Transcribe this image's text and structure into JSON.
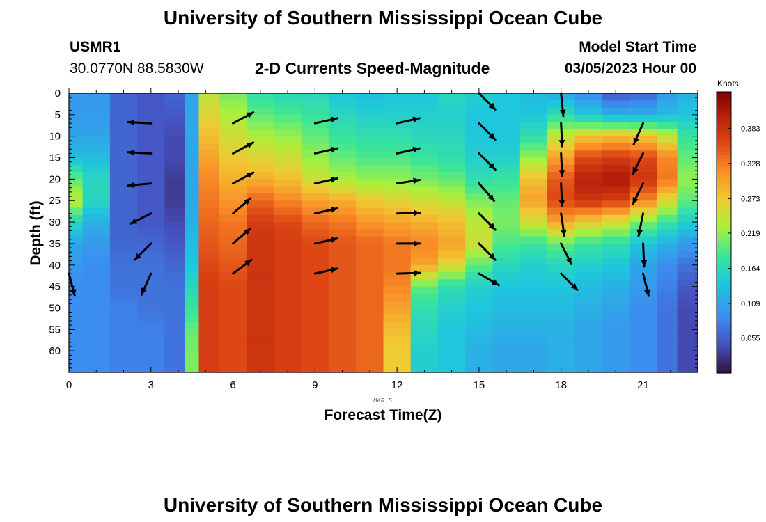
{
  "header": {
    "title": "University of Southern Mississippi Ocean Cube",
    "station_id": "USMR1",
    "coordinates": "30.0770N  88.5830W",
    "plot_title": "2-D Currents Speed-Magnitude",
    "model_label": "Model Start Time",
    "model_time": "03/05/2023 Hour 00"
  },
  "footer": {
    "title": "University of Southern Mississippi Ocean Cube"
  },
  "chart_data": {
    "type": "heatmap",
    "xlabel": "Forecast Time(Z)",
    "ylabel": "Depth (ft)",
    "date_label": "MAR 5",
    "xlim": [
      0,
      23
    ],
    "ylim": [
      65,
      0
    ],
    "x_ticks": [
      0,
      3,
      6,
      9,
      12,
      15,
      18,
      21
    ],
    "y_ticks": [
      0,
      5,
      10,
      15,
      20,
      25,
      30,
      35,
      40,
      45,
      50,
      55,
      60
    ],
    "colorbar": {
      "label": "Knots",
      "range": [
        0,
        0.44
      ],
      "ticks": [
        "0.055",
        "0.109",
        "0.164",
        "0.219",
        "0.273",
        "0.328",
        "0.383"
      ],
      "tick_values": [
        0.055,
        0.109,
        0.164,
        0.219,
        0.273,
        0.328,
        0.383
      ]
    },
    "depths": [
      0,
      5,
      10,
      15,
      20,
      25,
      30,
      35,
      40,
      45,
      50,
      55,
      60,
      65
    ],
    "columns": [
      {
        "t": 0,
        "speed": [
          0.1,
          0.1,
          0.11,
          0.13,
          0.2,
          0.24,
          0.16,
          0.11,
          0.1,
          0.09,
          0.09,
          0.09,
          0.09,
          0.09
        ]
      },
      {
        "t": 1,
        "speed": [
          0.1,
          0.1,
          0.11,
          0.13,
          0.16,
          0.16,
          0.12,
          0.1,
          0.09,
          0.09,
          0.09,
          0.09,
          0.09,
          0.09
        ]
      },
      {
        "t": 2,
        "speed": [
          0.06,
          0.06,
          0.06,
          0.06,
          0.06,
          0.06,
          0.06,
          0.06,
          0.07,
          0.07,
          0.08,
          0.08,
          0.08,
          0.08
        ]
      },
      {
        "t": 3,
        "speed": [
          0.05,
          0.05,
          0.05,
          0.05,
          0.05,
          0.05,
          0.05,
          0.06,
          0.07,
          0.07,
          0.07,
          0.08,
          0.08,
          0.08
        ]
      },
      {
        "t": 4,
        "speed": [
          0.06,
          0.05,
          0.04,
          0.04,
          0.03,
          0.03,
          0.04,
          0.05,
          0.06,
          0.07,
          0.07,
          0.07,
          0.07,
          0.07
        ]
      },
      {
        "t": 4.5,
        "speed": [
          0.11,
          0.11,
          0.11,
          0.11,
          0.11,
          0.11,
          0.12,
          0.13,
          0.14,
          0.16,
          0.18,
          0.2,
          0.21,
          0.21
        ]
      },
      {
        "t": 5,
        "speed": [
          0.24,
          0.26,
          0.28,
          0.3,
          0.32,
          0.33,
          0.34,
          0.35,
          0.36,
          0.37,
          0.37,
          0.37,
          0.37,
          0.37
        ]
      },
      {
        "t": 6,
        "speed": [
          0.21,
          0.23,
          0.25,
          0.27,
          0.29,
          0.31,
          0.33,
          0.34,
          0.35,
          0.36,
          0.36,
          0.36,
          0.36,
          0.36
        ]
      },
      {
        "t": 7,
        "speed": [
          0.17,
          0.2,
          0.23,
          0.26,
          0.29,
          0.34,
          0.37,
          0.38,
          0.38,
          0.38,
          0.38,
          0.38,
          0.38,
          0.38
        ]
      },
      {
        "t": 8,
        "speed": [
          0.16,
          0.19,
          0.22,
          0.25,
          0.28,
          0.32,
          0.36,
          0.37,
          0.37,
          0.37,
          0.37,
          0.37,
          0.37,
          0.37
        ]
      },
      {
        "t": 9,
        "speed": [
          0.16,
          0.18,
          0.2,
          0.22,
          0.25,
          0.3,
          0.34,
          0.36,
          0.36,
          0.36,
          0.36,
          0.36,
          0.36,
          0.36
        ]
      },
      {
        "t": 10,
        "speed": [
          0.14,
          0.16,
          0.18,
          0.2,
          0.23,
          0.29,
          0.33,
          0.35,
          0.35,
          0.35,
          0.35,
          0.35,
          0.35,
          0.35
        ]
      },
      {
        "t": 11,
        "speed": [
          0.13,
          0.15,
          0.17,
          0.19,
          0.22,
          0.27,
          0.31,
          0.34,
          0.34,
          0.34,
          0.34,
          0.34,
          0.34,
          0.34
        ]
      },
      {
        "t": 12,
        "speed": [
          0.14,
          0.15,
          0.17,
          0.19,
          0.22,
          0.26,
          0.3,
          0.33,
          0.33,
          0.32,
          0.3,
          0.28,
          0.27,
          0.27
        ]
      },
      {
        "t": 13,
        "speed": [
          0.14,
          0.15,
          0.16,
          0.18,
          0.21,
          0.25,
          0.29,
          0.32,
          0.3,
          0.2,
          0.17,
          0.16,
          0.15,
          0.15
        ]
      },
      {
        "t": 14,
        "speed": [
          0.16,
          0.15,
          0.16,
          0.17,
          0.2,
          0.24,
          0.28,
          0.3,
          0.26,
          0.17,
          0.15,
          0.14,
          0.14,
          0.14
        ]
      },
      {
        "t": 15,
        "speed": [
          0.15,
          0.14,
          0.14,
          0.15,
          0.17,
          0.21,
          0.24,
          0.25,
          0.2,
          0.15,
          0.14,
          0.13,
          0.12,
          0.12
        ]
      },
      {
        "t": 16,
        "speed": [
          0.14,
          0.14,
          0.14,
          0.15,
          0.18,
          0.2,
          0.21,
          0.19,
          0.16,
          0.14,
          0.13,
          0.12,
          0.11,
          0.11
        ]
      },
      {
        "t": 17,
        "speed": [
          0.13,
          0.14,
          0.17,
          0.22,
          0.28,
          0.3,
          0.25,
          0.18,
          0.15,
          0.14,
          0.13,
          0.12,
          0.11,
          0.11
        ]
      },
      {
        "t": 18,
        "speed": [
          0.11,
          0.17,
          0.24,
          0.3,
          0.35,
          0.36,
          0.3,
          0.2,
          0.16,
          0.14,
          0.13,
          0.12,
          0.12,
          0.12
        ]
      },
      {
        "t": 19,
        "speed": [
          0.09,
          0.14,
          0.27,
          0.36,
          0.4,
          0.38,
          0.27,
          0.18,
          0.15,
          0.13,
          0.12,
          0.11,
          0.11,
          0.11
        ]
      },
      {
        "t": 20,
        "speed": [
          0.05,
          0.12,
          0.28,
          0.37,
          0.41,
          0.37,
          0.25,
          0.17,
          0.14,
          0.12,
          0.11,
          0.1,
          0.1,
          0.1
        ]
      },
      {
        "t": 21,
        "speed": [
          0.06,
          0.12,
          0.27,
          0.36,
          0.38,
          0.32,
          0.21,
          0.14,
          0.11,
          0.1,
          0.09,
          0.09,
          0.09,
          0.09
        ]
      },
      {
        "t": 22,
        "speed": [
          0.1,
          0.13,
          0.24,
          0.32,
          0.33,
          0.26,
          0.18,
          0.12,
          0.09,
          0.08,
          0.07,
          0.07,
          0.07,
          0.07
        ]
      },
      {
        "t": 22.5,
        "speed": [
          0.12,
          0.14,
          0.18,
          0.2,
          0.22,
          0.2,
          0.15,
          0.1,
          0.07,
          0.05,
          0.04,
          0.04,
          0.04,
          0.04
        ]
      }
    ],
    "vectors": [
      {
        "t": 0,
        "depth": 42,
        "u": 0.25,
        "v": -0.95
      },
      {
        "t": 3,
        "depth": 7,
        "u": -1.0,
        "v": 0.05
      },
      {
        "t": 3,
        "depth": 14,
        "u": -1.0,
        "v": 0.05
      },
      {
        "t": 3,
        "depth": 21,
        "u": -1.0,
        "v": -0.1
      },
      {
        "t": 3,
        "depth": 28,
        "u": -0.9,
        "v": -0.45
      },
      {
        "t": 3,
        "depth": 35,
        "u": -0.7,
        "v": -0.7
      },
      {
        "t": 3,
        "depth": 42,
        "u": -0.4,
        "v": -0.9
      },
      {
        "t": 6,
        "depth": 7,
        "u": 0.88,
        "v": 0.47
      },
      {
        "t": 6,
        "depth": 14,
        "u": 0.88,
        "v": 0.47
      },
      {
        "t": 6,
        "depth": 21,
        "u": 0.88,
        "v": 0.47
      },
      {
        "t": 6,
        "depth": 28,
        "u": 0.75,
        "v": 0.65
      },
      {
        "t": 6,
        "depth": 35,
        "u": 0.75,
        "v": 0.65
      },
      {
        "t": 6,
        "depth": 42,
        "u": 0.8,
        "v": 0.6
      },
      {
        "t": 9,
        "depth": 7,
        "u": 0.97,
        "v": 0.22
      },
      {
        "t": 9,
        "depth": 14,
        "u": 0.97,
        "v": 0.22
      },
      {
        "t": 9,
        "depth": 21,
        "u": 0.97,
        "v": 0.22
      },
      {
        "t": 9,
        "depth": 28,
        "u": 0.97,
        "v": 0.22
      },
      {
        "t": 9,
        "depth": 35,
        "u": 0.97,
        "v": 0.22
      },
      {
        "t": 9,
        "depth": 42,
        "u": 0.97,
        "v": 0.22
      },
      {
        "t": 12,
        "depth": 7,
        "u": 0.97,
        "v": 0.22
      },
      {
        "t": 12,
        "depth": 14,
        "u": 0.97,
        "v": 0.22
      },
      {
        "t": 12,
        "depth": 21,
        "u": 0.97,
        "v": 0.15
      },
      {
        "t": 12,
        "depth": 28,
        "u": 1.0,
        "v": 0.03
      },
      {
        "t": 12,
        "depth": 35,
        "u": 1.0,
        "v": 0.0
      },
      {
        "t": 12,
        "depth": 42,
        "u": 1.0,
        "v": 0.03
      },
      {
        "t": 15,
        "depth": 0,
        "u": 0.7,
        "v": -0.7
      },
      {
        "t": 15,
        "depth": 7,
        "u": 0.7,
        "v": -0.7
      },
      {
        "t": 15,
        "depth": 14,
        "u": 0.7,
        "v": -0.7
      },
      {
        "t": 15,
        "depth": 21,
        "u": 0.65,
        "v": -0.75
      },
      {
        "t": 15,
        "depth": 28,
        "u": 0.7,
        "v": -0.7
      },
      {
        "t": 15,
        "depth": 35,
        "u": 0.7,
        "v": -0.7
      },
      {
        "t": 15,
        "depth": 42,
        "u": 0.85,
        "v": -0.5
      },
      {
        "t": 18,
        "depth": 0,
        "u": 0.1,
        "v": -1.0
      },
      {
        "t": 18,
        "depth": 7,
        "u": 0.05,
        "v": -1.0
      },
      {
        "t": 18,
        "depth": 14,
        "u": 0.05,
        "v": -1.0
      },
      {
        "t": 18,
        "depth": 21,
        "u": 0.05,
        "v": -1.0
      },
      {
        "t": 18,
        "depth": 28,
        "u": 0.15,
        "v": -1.0
      },
      {
        "t": 18,
        "depth": 35,
        "u": 0.45,
        "v": -0.9
      },
      {
        "t": 18,
        "depth": 42,
        "u": 0.7,
        "v": -0.7
      },
      {
        "t": 21,
        "depth": 7,
        "u": -0.4,
        "v": -0.9
      },
      {
        "t": 21,
        "depth": 14,
        "u": -0.45,
        "v": -0.9
      },
      {
        "t": 21,
        "depth": 21,
        "u": -0.45,
        "v": -0.9
      },
      {
        "t": 21,
        "depth": 28,
        "u": -0.2,
        "v": -1.0
      },
      {
        "t": 21,
        "depth": 35,
        "u": 0.05,
        "v": -1.0
      },
      {
        "t": 21,
        "depth": 42,
        "u": 0.25,
        "v": -1.0
      }
    ]
  }
}
